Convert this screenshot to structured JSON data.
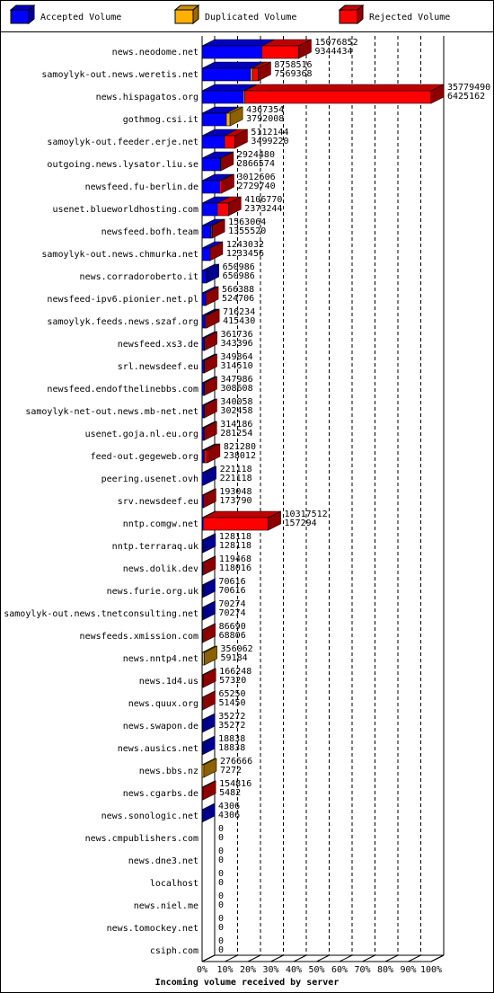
{
  "chart_data": {
    "type": "stacked-bar-3d",
    "title": "Incoming volume received by server",
    "categories": [
      "news.neodome.net",
      "samoylyk-out.news.weretis.net",
      "news.hispagatos.org",
      "gothmog.csi.it",
      "samoylyk-out.feeder.erje.net",
      "outgoing.news.lysator.liu.se",
      "newsfeed.fu-berlin.de",
      "usenet.blueworldhosting.com",
      "newsfeed.bofh.team",
      "samoylyk-out.news.chmurka.net",
      "news.corradoroberto.it",
      "newsfeed-ipv6.pionier.net.pl",
      "samoylyk.feeds.news.szaf.org",
      "newsfeed.xs3.de",
      "srl.newsdeef.eu",
      "newsfeed.endofthelinebbs.com",
      "samoylyk-net-out.news.mb-net.net",
      "usenet.goja.nl.eu.org",
      "feed-out.gegeweb.org",
      "peering.usenet.ovh",
      "srv.newsdeef.eu",
      "nntp.comgw.net",
      "nntp.terraraq.uk",
      "news.dolik.dev",
      "news.furie.org.uk",
      "samoylyk-out.news.tnetconsulting.net",
      "newsfeeds.xmission.com",
      "news.nntp4.net",
      "news.1d4.us",
      "news.quux.org",
      "news.swapon.de",
      "news.ausics.net",
      "news.bbs.nz",
      "news.cgarbs.de",
      "news.sonologic.net",
      "news.cmpublishers.com",
      "news.dne3.net",
      "localhost",
      "news.niel.me",
      "news.tomockey.net",
      "csiph.com"
    ],
    "totals": [
      15076852,
      8758516,
      35779490,
      4367354,
      5112144,
      2924480,
      3012606,
      4106770,
      1563064,
      1243032,
      650986,
      566388,
      716234,
      361736,
      349864,
      347986,
      340058,
      314186,
      821280,
      221118,
      193048,
      10317512,
      128118,
      119468,
      70616,
      70274,
      86690,
      356062,
      166248,
      65250,
      35272,
      18838,
      276666,
      154816,
      4306,
      0,
      0,
      0,
      0,
      0,
      0
    ],
    "series": [
      {
        "name": "Accepted Volume",
        "color": "#0000ff",
        "values": [
          9344434,
          7569368,
          6425162,
          3792008,
          3499220,
          2866574,
          2729740,
          2373244,
          1355520,
          1233456,
          650986,
          524706,
          415430,
          343396,
          314510,
          308608,
          302458,
          281254,
          238012,
          221118,
          173790,
          157294,
          128118,
          118016,
          70616,
          70274,
          68806,
          59184,
          57320,
          51450,
          35272,
          18838,
          7272,
          5482,
          4306,
          0,
          0,
          0,
          0,
          0,
          0
        ]
      },
      {
        "name": "Duplicated Volume",
        "color": "#ffb000",
        "values": [
          0,
          300000,
          200000,
          575346,
          0,
          0,
          0,
          0,
          0,
          0,
          0,
          0,
          100000,
          0,
          0,
          0,
          0,
          0,
          100000,
          0,
          0,
          0,
          0,
          0,
          0,
          0,
          0,
          296878,
          0,
          0,
          0,
          0,
          269394,
          0,
          0,
          0,
          0,
          0,
          0,
          0,
          0
        ]
      },
      {
        "name": "Rejected Volume",
        "color": "#ff0000",
        "values": [
          5732418,
          889148,
          29154328,
          0,
          1612924,
          57906,
          282866,
          1733526,
          207544,
          9576,
          0,
          41682,
          200804,
          18340,
          35354,
          39378,
          37600,
          32932,
          483268,
          0,
          19258,
          10160218,
          0,
          1452,
          0,
          0,
          17884,
          0,
          108928,
          13800,
          0,
          0,
          0,
          149334,
          0,
          0,
          0,
          0,
          0,
          0,
          0
        ]
      }
    ],
    "xlim": [
      0,
      35779490
    ],
    "xticks": [
      {
        "value": 0,
        "label": "0%"
      },
      {
        "value": 3577949,
        "label": "10%"
      },
      {
        "value": 7155898,
        "label": "20%"
      },
      {
        "value": 10733847,
        "label": "30%"
      },
      {
        "value": 14311796,
        "label": "40%"
      },
      {
        "value": 17889745,
        "label": "50%"
      },
      {
        "value": 21467694,
        "label": "60%"
      },
      {
        "value": 25045643,
        "label": "70%"
      },
      {
        "value": 28623592,
        "label": "80%"
      },
      {
        "value": 32201541,
        "label": "90%"
      },
      {
        "value": 35779490,
        "label": "100%"
      }
    ],
    "grid": true
  }
}
